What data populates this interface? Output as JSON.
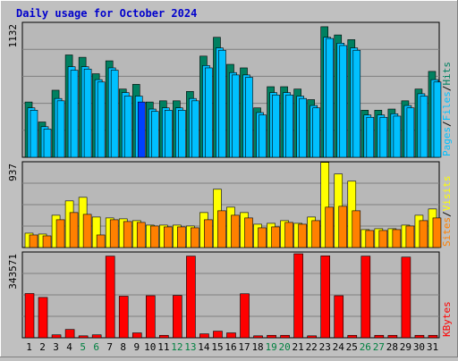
{
  "colors": {
    "background": "#c0c0c0",
    "plot_background": "#b8b8b8",
    "grid": "#808080",
    "title": "#0000cc",
    "axis_text": "#000000",
    "weekend_day": "#008040",
    "hits": "#008060",
    "files": "#00c0ff",
    "pages": "#00c0ff",
    "visits": "#ffff00",
    "sites": "#ff8000",
    "kbytes": "#ff0000",
    "highlight_pages": "#0040ff"
  },
  "chart_data": {
    "type": "bar",
    "title": "Daily usage for October 2024",
    "categories": [
      "1",
      "2",
      "3",
      "4",
      "5",
      "6",
      "7",
      "8",
      "9",
      "10",
      "11",
      "12",
      "13",
      "14",
      "15",
      "16",
      "17",
      "18",
      "19",
      "20",
      "21",
      "22",
      "23",
      "24",
      "25",
      "26",
      "27",
      "28",
      "29",
      "30",
      "31"
    ],
    "weekend_days": [
      "5",
      "6",
      "12",
      "13",
      "19",
      "20",
      "26",
      "27"
    ],
    "panels": [
      {
        "ymax_label": "1132",
        "ymax": 1132,
        "legend": [
          "Pages",
          "/",
          "Files",
          "/",
          "Hits"
        ],
        "series": [
          {
            "name": "Hits",
            "values": [
              470,
              300,
              570,
              870,
              850,
              710,
              820,
              580,
              620,
              470,
              480,
              480,
              560,
              860,
              1020,
              790,
              760,
              420,
              600,
              600,
              580,
              490,
              1110,
              1040,
              1000,
              400,
              400,
              410,
              480,
              580,
              730
            ]
          },
          {
            "name": "Files",
            "values": [
              420,
              260,
              500,
              770,
              770,
              660,
              760,
              550,
              520,
              410,
              420,
              420,
              500,
              780,
              930,
              720,
              700,
              380,
              550,
              550,
              520,
              440,
              1020,
              970,
              930,
              360,
              360,
              370,
              440,
              540,
              660
            ]
          },
          {
            "name": "Pages",
            "values": [
              400,
              240,
              480,
              740,
              750,
              640,
              740,
              520,
              470,
              390,
              400,
              400,
              480,
              760,
              910,
              700,
              680,
              360,
              530,
              530,
              500,
              420,
              1010,
              950,
              910,
              340,
              340,
              350,
              420,
              520,
              640
            ]
          }
        ]
      },
      {
        "ymax_label": "937",
        "ymax": 937,
        "legend": [
          "Sites",
          "/",
          "Visits"
        ],
        "series": [
          {
            "name": "Visits",
            "values": [
              160,
              150,
              360,
              520,
              560,
              340,
              330,
              320,
              300,
              250,
              250,
              250,
              240,
              390,
              650,
              450,
              390,
              260,
              270,
              300,
              270,
              340,
              950,
              820,
              740,
              200,
              210,
              210,
              250,
              360,
              430
            ]
          },
          {
            "name": "Sites",
            "values": [
              140,
              130,
              310,
              390,
              370,
              140,
              310,
              290,
              280,
              240,
              230,
              230,
              220,
              310,
              410,
              360,
              330,
              220,
              230,
              280,
              260,
              300,
              450,
              460,
              410,
              190,
              190,
              200,
              240,
              300,
              330
            ]
          }
        ]
      },
      {
        "ymax_label": "343571",
        "ymax": 343571,
        "legend": [
          "KBytes"
        ],
        "series": [
          {
            "name": "KBytes",
            "values": [
              181000,
              165000,
              12000,
              34000,
              8000,
              12000,
              334000,
              170000,
              20000,
              172000,
              10000,
              173000,
              334000,
              16000,
              27000,
              20000,
              180000,
              8000,
              10000,
              10000,
              343571,
              8000,
              335000,
              172000,
              10000,
              334000,
              10000,
              10000,
              330000,
              10000,
              10000
            ]
          }
        ]
      }
    ]
  }
}
